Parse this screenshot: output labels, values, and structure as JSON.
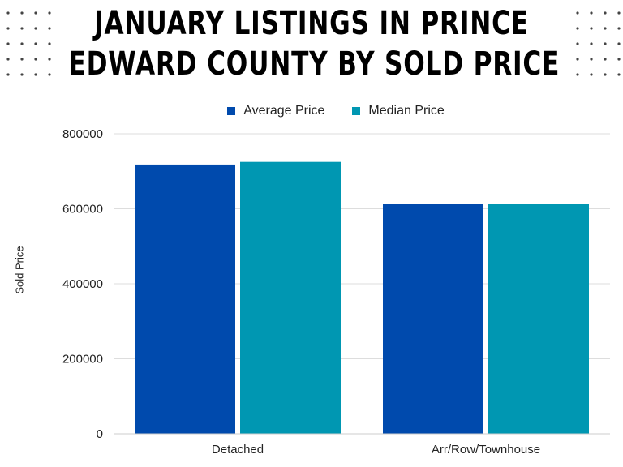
{
  "title_lines": [
    "January Listings in Prince",
    "Edward County by Sold Price"
  ],
  "colors": {
    "average": "#004aad",
    "median": "#0097b2",
    "grid": "#dddddd",
    "dots": "#444444"
  },
  "chart_data": {
    "type": "bar",
    "title": "January Listings in Prince Edward County by Sold Price",
    "xlabel": "",
    "ylabel": "Sold Price",
    "categories": [
      "Detached",
      "Arr/Row/Townhouse"
    ],
    "series": [
      {
        "name": "Average Price",
        "values": [
          718000,
          612000
        ]
      },
      {
        "name": "Median Price",
        "values": [
          725000,
          612000
        ]
      }
    ],
    "ylim": [
      0,
      800000
    ],
    "yticks": [
      "0",
      "200000",
      "400000",
      "600000",
      "800000"
    ],
    "grid": true,
    "legend": "top"
  }
}
